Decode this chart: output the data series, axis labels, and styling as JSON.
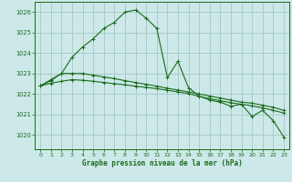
{
  "xlabel": "Graphe pression niveau de la mer (hPa)",
  "background_color": "#cce8e8",
  "grid_color": "#aacccc",
  "line_color": "#1a6b1a",
  "ylim": [
    1019.3,
    1026.5
  ],
  "xlim": [
    -0.5,
    23.5
  ],
  "yticks": [
    1020,
    1021,
    1022,
    1023,
    1024,
    1025,
    1026
  ],
  "xticks": [
    0,
    1,
    2,
    3,
    4,
    5,
    6,
    7,
    8,
    9,
    10,
    11,
    12,
    13,
    14,
    15,
    16,
    17,
    18,
    19,
    20,
    21,
    22,
    23
  ],
  "series1_y": [
    1022.4,
    1022.7,
    1023.0,
    1023.8,
    1024.3,
    1024.7,
    1025.2,
    1025.5,
    1026.0,
    1026.1,
    1025.7,
    1025.2,
    1022.8,
    1023.6,
    1022.3,
    1021.9,
    1021.7,
    1021.6,
    1021.4,
    1021.5,
    1020.9,
    1021.2,
    1020.7,
    1019.9
  ],
  "series2_y": [
    1022.4,
    1022.65,
    1023.0,
    1023.0,
    1023.0,
    1022.92,
    1022.83,
    1022.75,
    1022.65,
    1022.56,
    1022.47,
    1022.38,
    1022.28,
    1022.19,
    1022.1,
    1022.0,
    1021.9,
    1021.8,
    1021.7,
    1021.6,
    1021.55,
    1021.45,
    1021.35,
    1021.2
  ],
  "series3_y": [
    1022.4,
    1022.52,
    1022.62,
    1022.7,
    1022.67,
    1022.62,
    1022.56,
    1022.5,
    1022.45,
    1022.38,
    1022.32,
    1022.26,
    1022.18,
    1022.1,
    1022.02,
    1021.88,
    1021.77,
    1021.67,
    1021.57,
    1021.5,
    1021.42,
    1021.32,
    1021.2,
    1021.07
  ]
}
